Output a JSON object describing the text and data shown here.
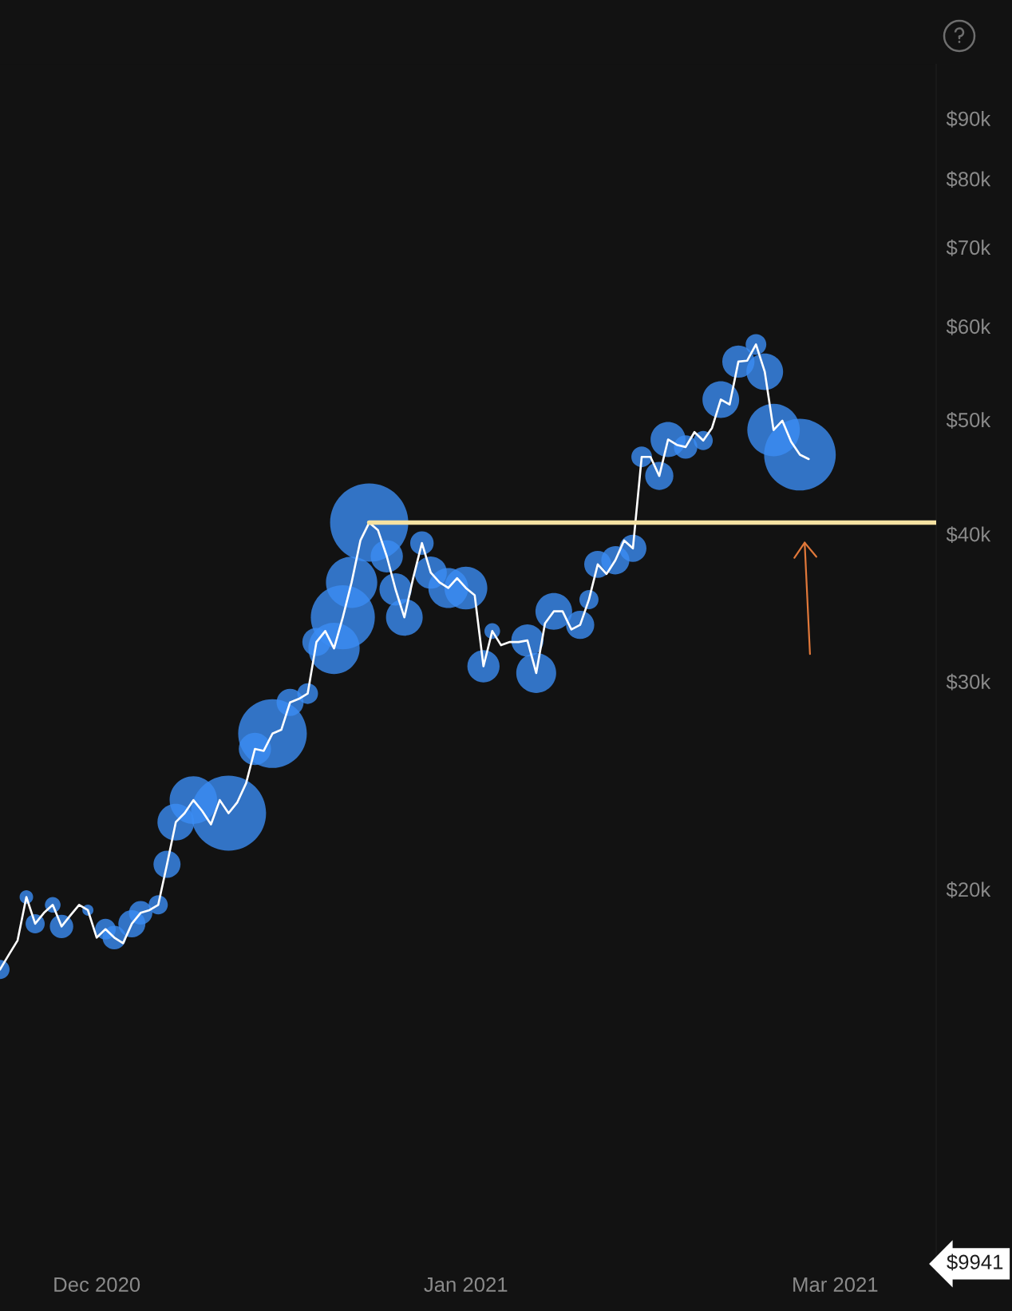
{
  "chart_data": {
    "type": "line",
    "log": true,
    "x": [
      "2020-11-27",
      "2020-11-28",
      "2020-11-29",
      "2020-11-30",
      "2020-12-01",
      "2020-12-02",
      "2020-12-03",
      "2020-12-04",
      "2020-12-05",
      "2020-12-06",
      "2020-12-07",
      "2020-12-08",
      "2020-12-09",
      "2020-12-10",
      "2020-12-11",
      "2020-12-12",
      "2020-12-13",
      "2020-12-14",
      "2020-12-15",
      "2020-12-16",
      "2020-12-17",
      "2020-12-18",
      "2020-12-19",
      "2020-12-20",
      "2020-12-21",
      "2020-12-22",
      "2020-12-23",
      "2020-12-24",
      "2020-12-25",
      "2020-12-26",
      "2020-12-27",
      "2020-12-28",
      "2020-12-29",
      "2020-12-30",
      "2020-12-31",
      "2021-01-01",
      "2021-01-02",
      "2021-01-03",
      "2021-01-04",
      "2021-01-05",
      "2021-01-06",
      "2021-01-07",
      "2021-01-08",
      "2021-01-09",
      "2021-01-10",
      "2021-01-11",
      "2021-01-12",
      "2021-01-13",
      "2021-01-14",
      "2021-01-15",
      "2021-01-16",
      "2021-01-17",
      "2021-01-18",
      "2021-01-19",
      "2021-01-20",
      "2021-01-21",
      "2021-01-22",
      "2021-01-23",
      "2021-01-24",
      "2021-01-25",
      "2021-01-26",
      "2021-01-27",
      "2021-01-28",
      "2021-01-29",
      "2021-01-30",
      "2021-01-31",
      "2021-02-01",
      "2021-02-02",
      "2021-02-03",
      "2021-02-04",
      "2021-02-05",
      "2021-02-06",
      "2021-02-07",
      "2021-02-08",
      "2021-02-09",
      "2021-02-10",
      "2021-02-11",
      "2021-02-12",
      "2021-02-13",
      "2021-02-14",
      "2021-02-15",
      "2021-02-16",
      "2021-02-17",
      "2021-02-18",
      "2021-02-19",
      "2021-02-20",
      "2021-02-21",
      "2021-02-22",
      "2021-02-23",
      "2021-02-24",
      "2021-02-25",
      "2021-02-26",
      "2021-02-27"
    ],
    "series": [
      {
        "type": "bubble",
        "color": "#3b8cf2",
        "x": [
          "2020-11-27",
          "2020-11-30",
          "2020-12-01",
          "2020-12-03",
          "2020-12-04",
          "2020-12-07",
          "2020-12-09",
          "2020-12-10",
          "2020-12-12",
          "2020-12-13",
          "2020-12-15",
          "2020-12-16",
          "2020-12-17",
          "2020-12-19",
          "2020-12-23",
          "2020-12-26",
          "2020-12-28",
          "2020-12-30",
          "2021-01-01",
          "2021-01-02",
          "2021-01-04",
          "2021-01-05",
          "2021-01-06",
          "2021-01-08",
          "2021-01-10",
          "2021-01-11",
          "2021-01-12",
          "2021-01-14",
          "2021-01-15",
          "2021-01-17",
          "2021-01-19",
          "2021-01-21",
          "2021-01-22",
          "2021-01-26",
          "2021-01-27",
          "2021-01-29",
          "2021-02-01",
          "2021-02-02",
          "2021-02-03",
          "2021-02-05",
          "2021-02-07",
          "2021-02-08",
          "2021-02-10",
          "2021-02-11",
          "2021-02-13",
          "2021-02-15",
          "2021-02-17",
          "2021-02-19",
          "2021-02-21",
          "2021-02-22",
          "2021-02-23",
          "2021-02-26"
        ],
        "values": [
          17100,
          19700,
          18700,
          19400,
          18600,
          19200,
          18500,
          18200,
          18700,
          19100,
          19400,
          21000,
          22800,
          23800,
          23200,
          26300,
          27100,
          28800,
          29300,
          32400,
          32000,
          34000,
          36400,
          40900,
          38300,
          35900,
          34000,
          39300,
          37100,
          36000,
          36000,
          30900,
          33100,
          32500,
          30500,
          34400,
          33500,
          35200,
          37700,
          38000,
          38900,
          46500,
          44800,
          48100,
          47400,
          48000,
          52000,
          56000,
          57900,
          54900,
          49000,
          46700
        ],
        "sizes": [
          0.06,
          0.03,
          0.06,
          0.04,
          0.09,
          0.02,
          0.07,
          0.09,
          0.12,
          0.09,
          0.06,
          0.12,
          0.22,
          0.37,
          0.92,
          0.17,
          0.77,
          0.12,
          0.07,
          0.13,
          0.43,
          0.67,
          0.43,
          1,
          0.17,
          0.17,
          0.22,
          0.09,
          0.17,
          0.26,
          0.3,
          0.17,
          0.04,
          0.17,
          0.26,
          0.22,
          0.13,
          0.06,
          0.12,
          0.13,
          0.12,
          0.07,
          0.13,
          0.2,
          0.09,
          0.06,
          0.22,
          0.17,
          0.07,
          0.22,
          0.45,
          0.84
        ]
      },
      {
        "color": "#ffffff",
        "values": [
          17100,
          17600,
          18100,
          19700,
          18700,
          19100,
          19400,
          18600,
          19000,
          19400,
          19200,
          18200,
          18500,
          18200,
          18000,
          18700,
          19100,
          19200,
          19400,
          21000,
          22800,
          23200,
          23800,
          23300,
          22700,
          23800,
          23200,
          23700,
          24600,
          26300,
          26200,
          27100,
          27300,
          28800,
          29000,
          29300,
          32400,
          33100,
          32000,
          34000,
          36400,
          39500,
          40900,
          40300,
          38300,
          35900,
          34000,
          36700,
          39300,
          37100,
          36400,
          36000,
          36700,
          36000,
          35500,
          30900,
          33100,
          32200,
          32400,
          32400,
          32500,
          30500,
          33600,
          34400,
          34400,
          33200,
          33500,
          35200,
          37700,
          37000,
          38000,
          39500,
          38900,
          46500,
          46500,
          44800,
          48100,
          47600,
          47400,
          48800,
          48000,
          49200,
          52000,
          51500,
          56000,
          56100,
          57900,
          54900,
          49000,
          49900,
          47900,
          46700,
          46300
        ]
      },
      {
        "color": "#f5e2a2",
        "x": [
          "2021-01-08",
          "2021-03-13T12:00"
        ],
        "values": [
          40900,
          40900
        ]
      }
    ],
    "xlim": [
      "2020-11-27",
      "2021-03-13T12:00"
    ],
    "xticks": [
      {
        "value": "2020-12-08",
        "label": "Dec 2020"
      },
      {
        "value": "2021-01-19",
        "label": "Jan 2021"
      },
      {
        "value": "2021-03-02",
        "label": "Mar 2021"
      }
    ],
    "ylim": [
      9450,
      100000
    ],
    "yticks": [
      {
        "value": 20000,
        "label": "$20k"
      },
      {
        "value": 30000,
        "label": "$30k"
      },
      {
        "value": 40000,
        "label": "$40k"
      },
      {
        "value": 50000,
        "label": "$50k"
      },
      {
        "value": 60000,
        "label": "$60k"
      },
      {
        "value": 70000,
        "label": "$70k"
      },
      {
        "value": 80000,
        "label": "$80k"
      },
      {
        "value": 90000,
        "label": "$90k"
      }
    ],
    "annotations": [
      "$9941"
    ]
  }
}
